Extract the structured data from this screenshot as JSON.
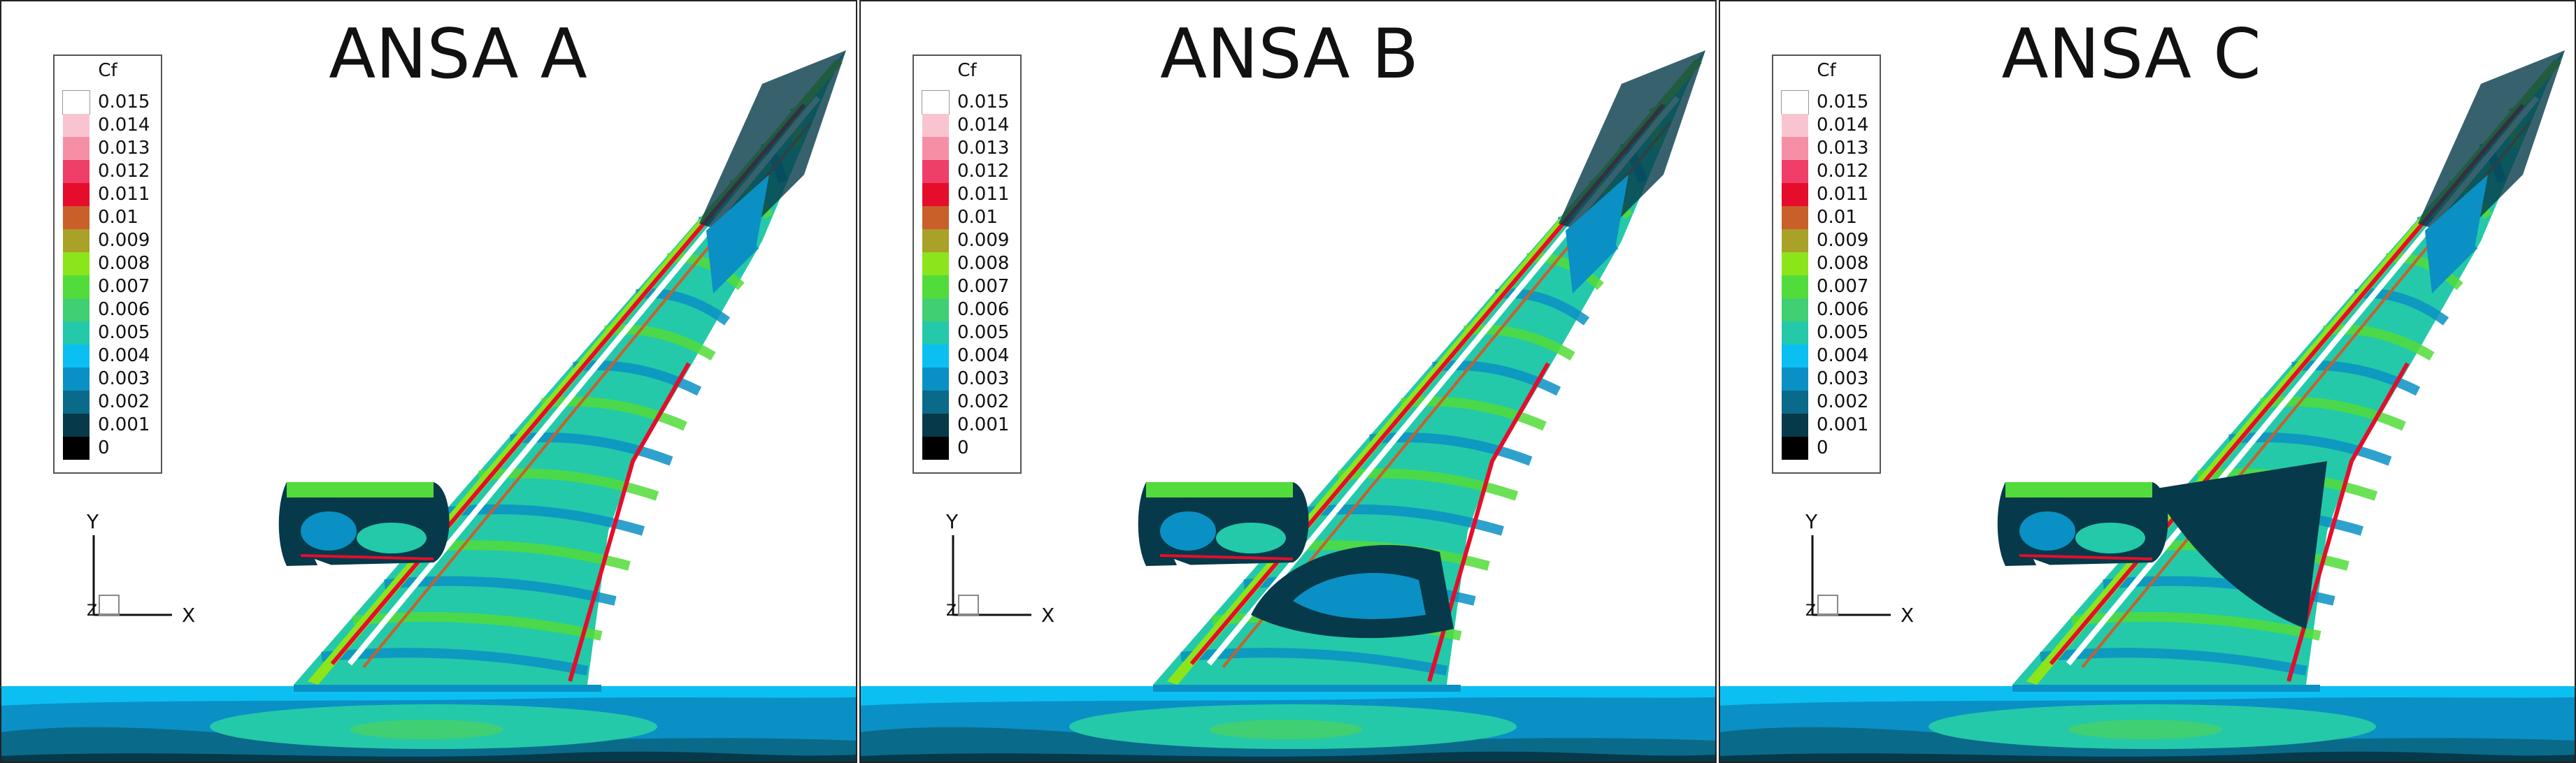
{
  "panels": [
    {
      "title": "ANSA A",
      "variant": "A"
    },
    {
      "title": "ANSA B",
      "variant": "B"
    },
    {
      "title": "ANSA C",
      "variant": "C"
    }
  ],
  "legend": {
    "title": "Cf",
    "levels": [
      {
        "label": "0.015",
        "color": "#ffffff"
      },
      {
        "label": "0.014",
        "color": "#f9c4cf"
      },
      {
        "label": "0.013",
        "color": "#f58fa6"
      },
      {
        "label": "0.012",
        "color": "#ef3e68"
      },
      {
        "label": "0.011",
        "color": "#e50d2b"
      },
      {
        "label": "0.01",
        "color": "#c9602a"
      },
      {
        "label": "0.009",
        "color": "#a9a128"
      },
      {
        "label": "0.008",
        "color": "#8ce51b"
      },
      {
        "label": "0.007",
        "color": "#52dc3b"
      },
      {
        "label": "0.006",
        "color": "#41cf73"
      },
      {
        "label": "0.005",
        "color": "#24c9a9"
      },
      {
        "label": "0.004",
        "color": "#0cbff2"
      },
      {
        "label": "0.003",
        "color": "#0a90c4"
      },
      {
        "label": "0.002",
        "color": "#0a6a8a"
      },
      {
        "label": "0.001",
        "color": "#06394a"
      },
      {
        "label": "0",
        "color": "#000000"
      }
    ]
  },
  "axes": {
    "y": "Y",
    "x": "X",
    "z": "Z"
  },
  "colors": {
    "ground_light": "#0cbff2",
    "ground_mid": "#0a90c4",
    "ground_dark": "#0a6a8a",
    "ground_teal": "#24c9a9",
    "ground_green": "#41cf73",
    "wing_mid": "#24c9a9",
    "wing_green": "#52dc3b",
    "wing_bright": "#8ce51b",
    "wing_dark": "#06394a",
    "wing_blue": "#0a90c4",
    "wing_light": "#0cbff2",
    "edge_red": "#e50d2b",
    "edge_orange": "#c9602a"
  }
}
